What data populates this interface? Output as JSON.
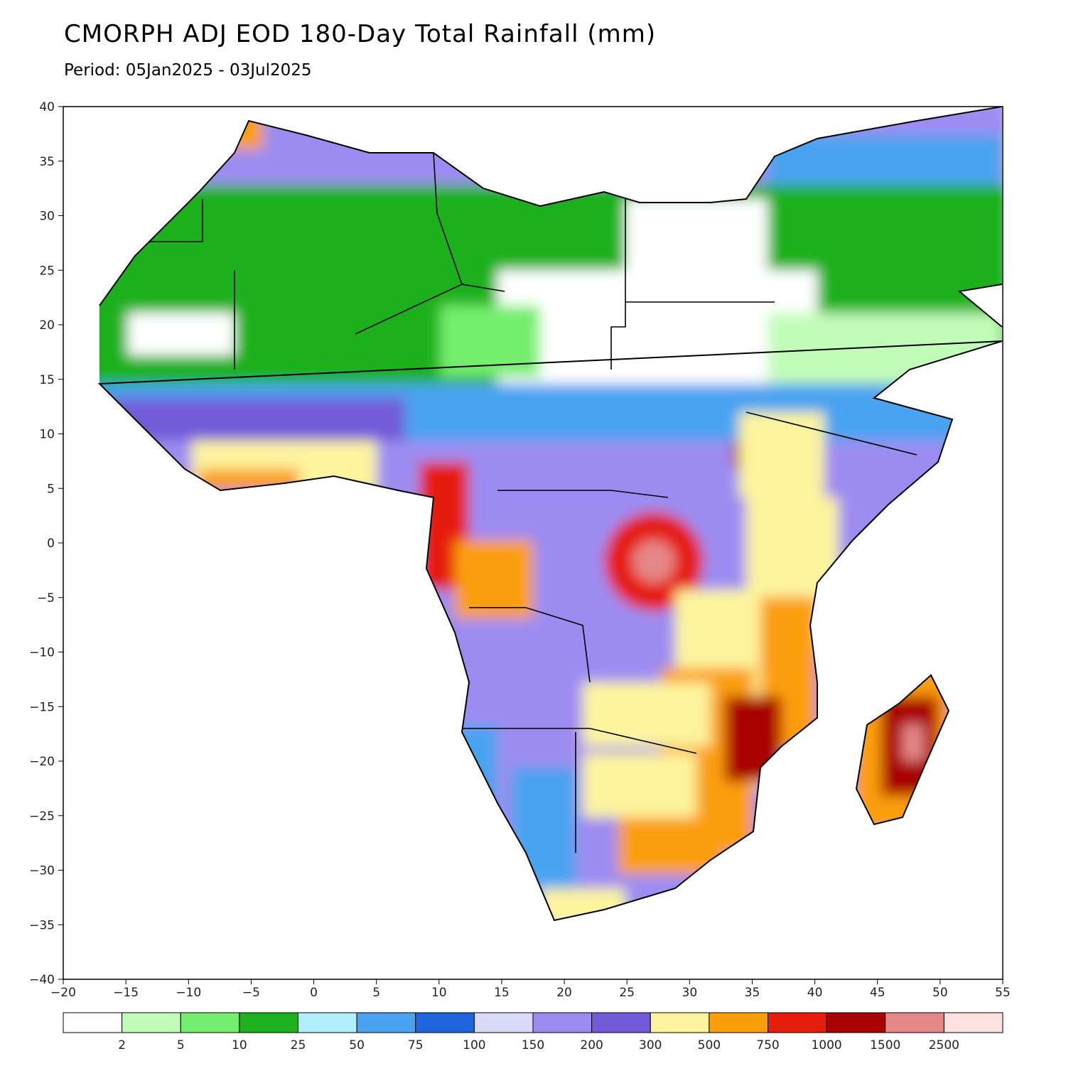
{
  "title": "CMORPH ADJ EOD 180-Day Total Rainfall (mm)",
  "subtitle": "Period: 05Jan2025 - 03Jul2025",
  "map": {
    "region": "Africa and Arabian Peninsula",
    "lon_range": [
      -20,
      55
    ],
    "lat_range": [
      -40,
      40
    ],
    "x_ticks": [
      "−20",
      "−15",
      "−10",
      "−5",
      "0",
      "5",
      "10",
      "15",
      "20",
      "25",
      "30",
      "35",
      "40",
      "45",
      "50",
      "55"
    ],
    "y_ticks": [
      "40",
      "35",
      "30",
      "25",
      "20",
      "15",
      "10",
      "5",
      "0",
      "−5",
      "−10",
      "−15",
      "−20",
      "−25",
      "−30",
      "−35",
      "−40"
    ]
  },
  "legend": {
    "colors": [
      "#ffffff",
      "#c2fcb9",
      "#74ee6e",
      "#1eb11e",
      "#b3eefc",
      "#4aa3f0",
      "#1f66dd",
      "#d9d9fa",
      "#9c8cf1",
      "#725bd8",
      "#fdf49d",
      "#fb9e09",
      "#e51d0b",
      "#a90202",
      "#e58888",
      "#fde0e0"
    ],
    "labels": [
      "2",
      "5",
      "10",
      "25",
      "50",
      "75",
      "100",
      "150",
      "200",
      "300",
      "500",
      "750",
      "1000",
      "1500",
      "2500"
    ]
  }
}
